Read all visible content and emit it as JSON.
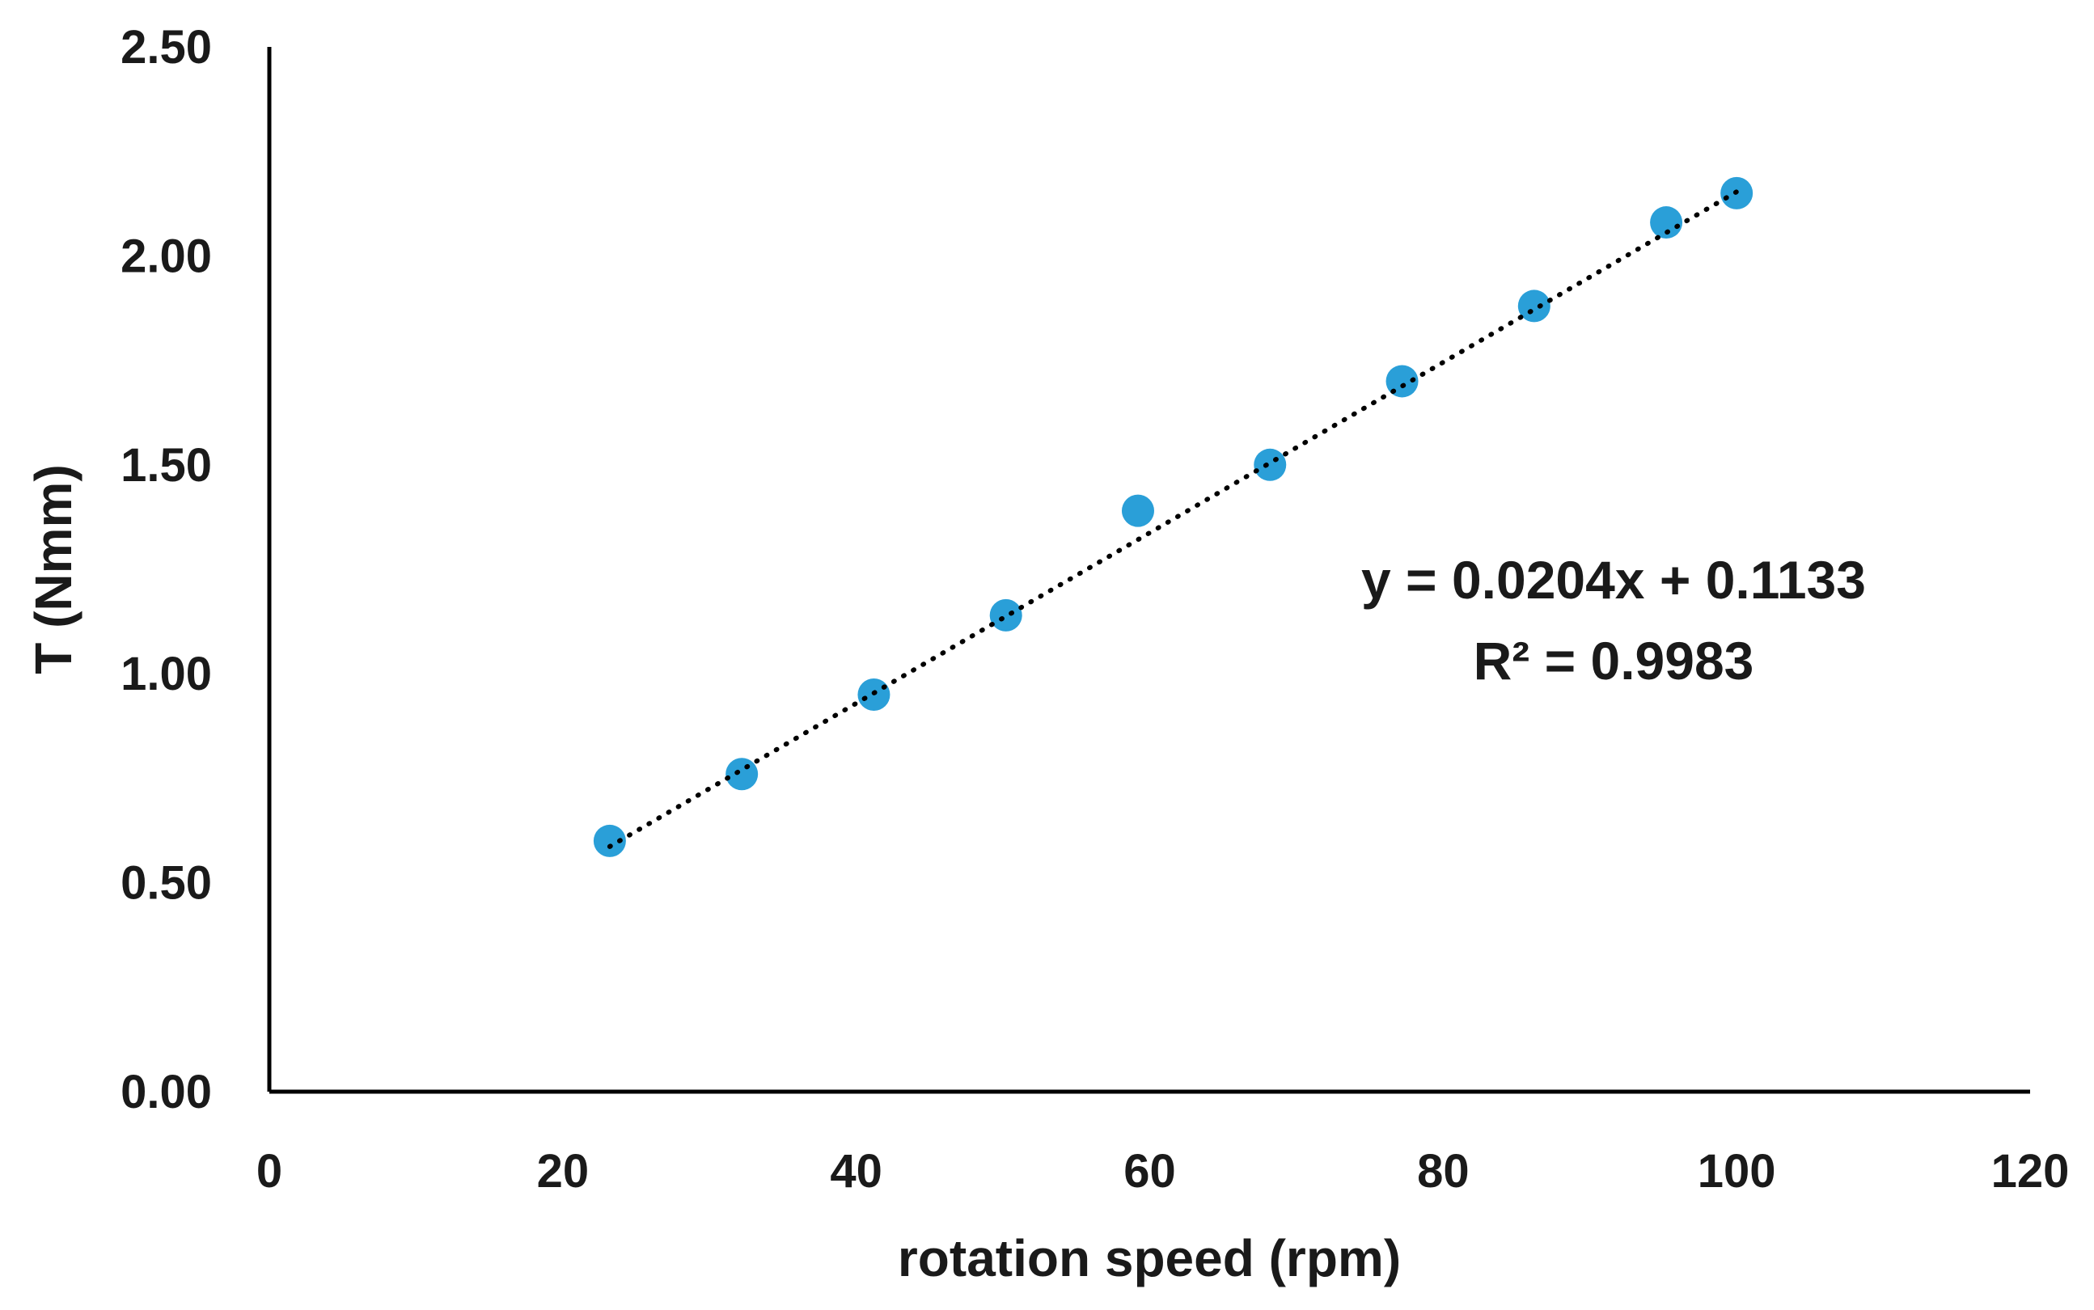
{
  "chart_data": {
    "type": "scatter",
    "title": "",
    "xlabel": "rotation speed (rpm)",
    "ylabel": "T (Nmm)",
    "xlim": [
      0,
      120
    ],
    "ylim": [
      0,
      2.5
    ],
    "x_ticks": [
      0,
      20,
      40,
      60,
      80,
      100,
      120
    ],
    "y_ticks": [
      0.0,
      0.5,
      1.0,
      1.5,
      2.0,
      2.5
    ],
    "x_tick_labels": [
      "0",
      "20",
      "40",
      "60",
      "80",
      "100",
      "120"
    ],
    "y_tick_labels": [
      "0.00",
      "0.50",
      "1.00",
      "1.50",
      "2.00",
      "2.50"
    ],
    "grid": false,
    "legend": "none",
    "series": [
      {
        "name": "T",
        "color": "#2a9fd8",
        "x": [
          23.2,
          32.2,
          41.2,
          50.2,
          59.2,
          68.2,
          77.2,
          86.2,
          95.2,
          100
        ],
        "y": [
          0.6,
          0.76,
          0.95,
          1.14,
          1.39,
          1.5,
          1.7,
          1.88,
          2.08,
          2.15
        ]
      }
    ],
    "trendline": {
      "type": "linear",
      "slope": 0.0204,
      "intercept": 0.1133,
      "x_range": [
        23.2,
        100
      ],
      "style": "dotted",
      "color": "#000000"
    },
    "annotations": {
      "equation": "y = 0.0204x + 0.1133",
      "r_squared": "R² = 0.9983"
    }
  }
}
